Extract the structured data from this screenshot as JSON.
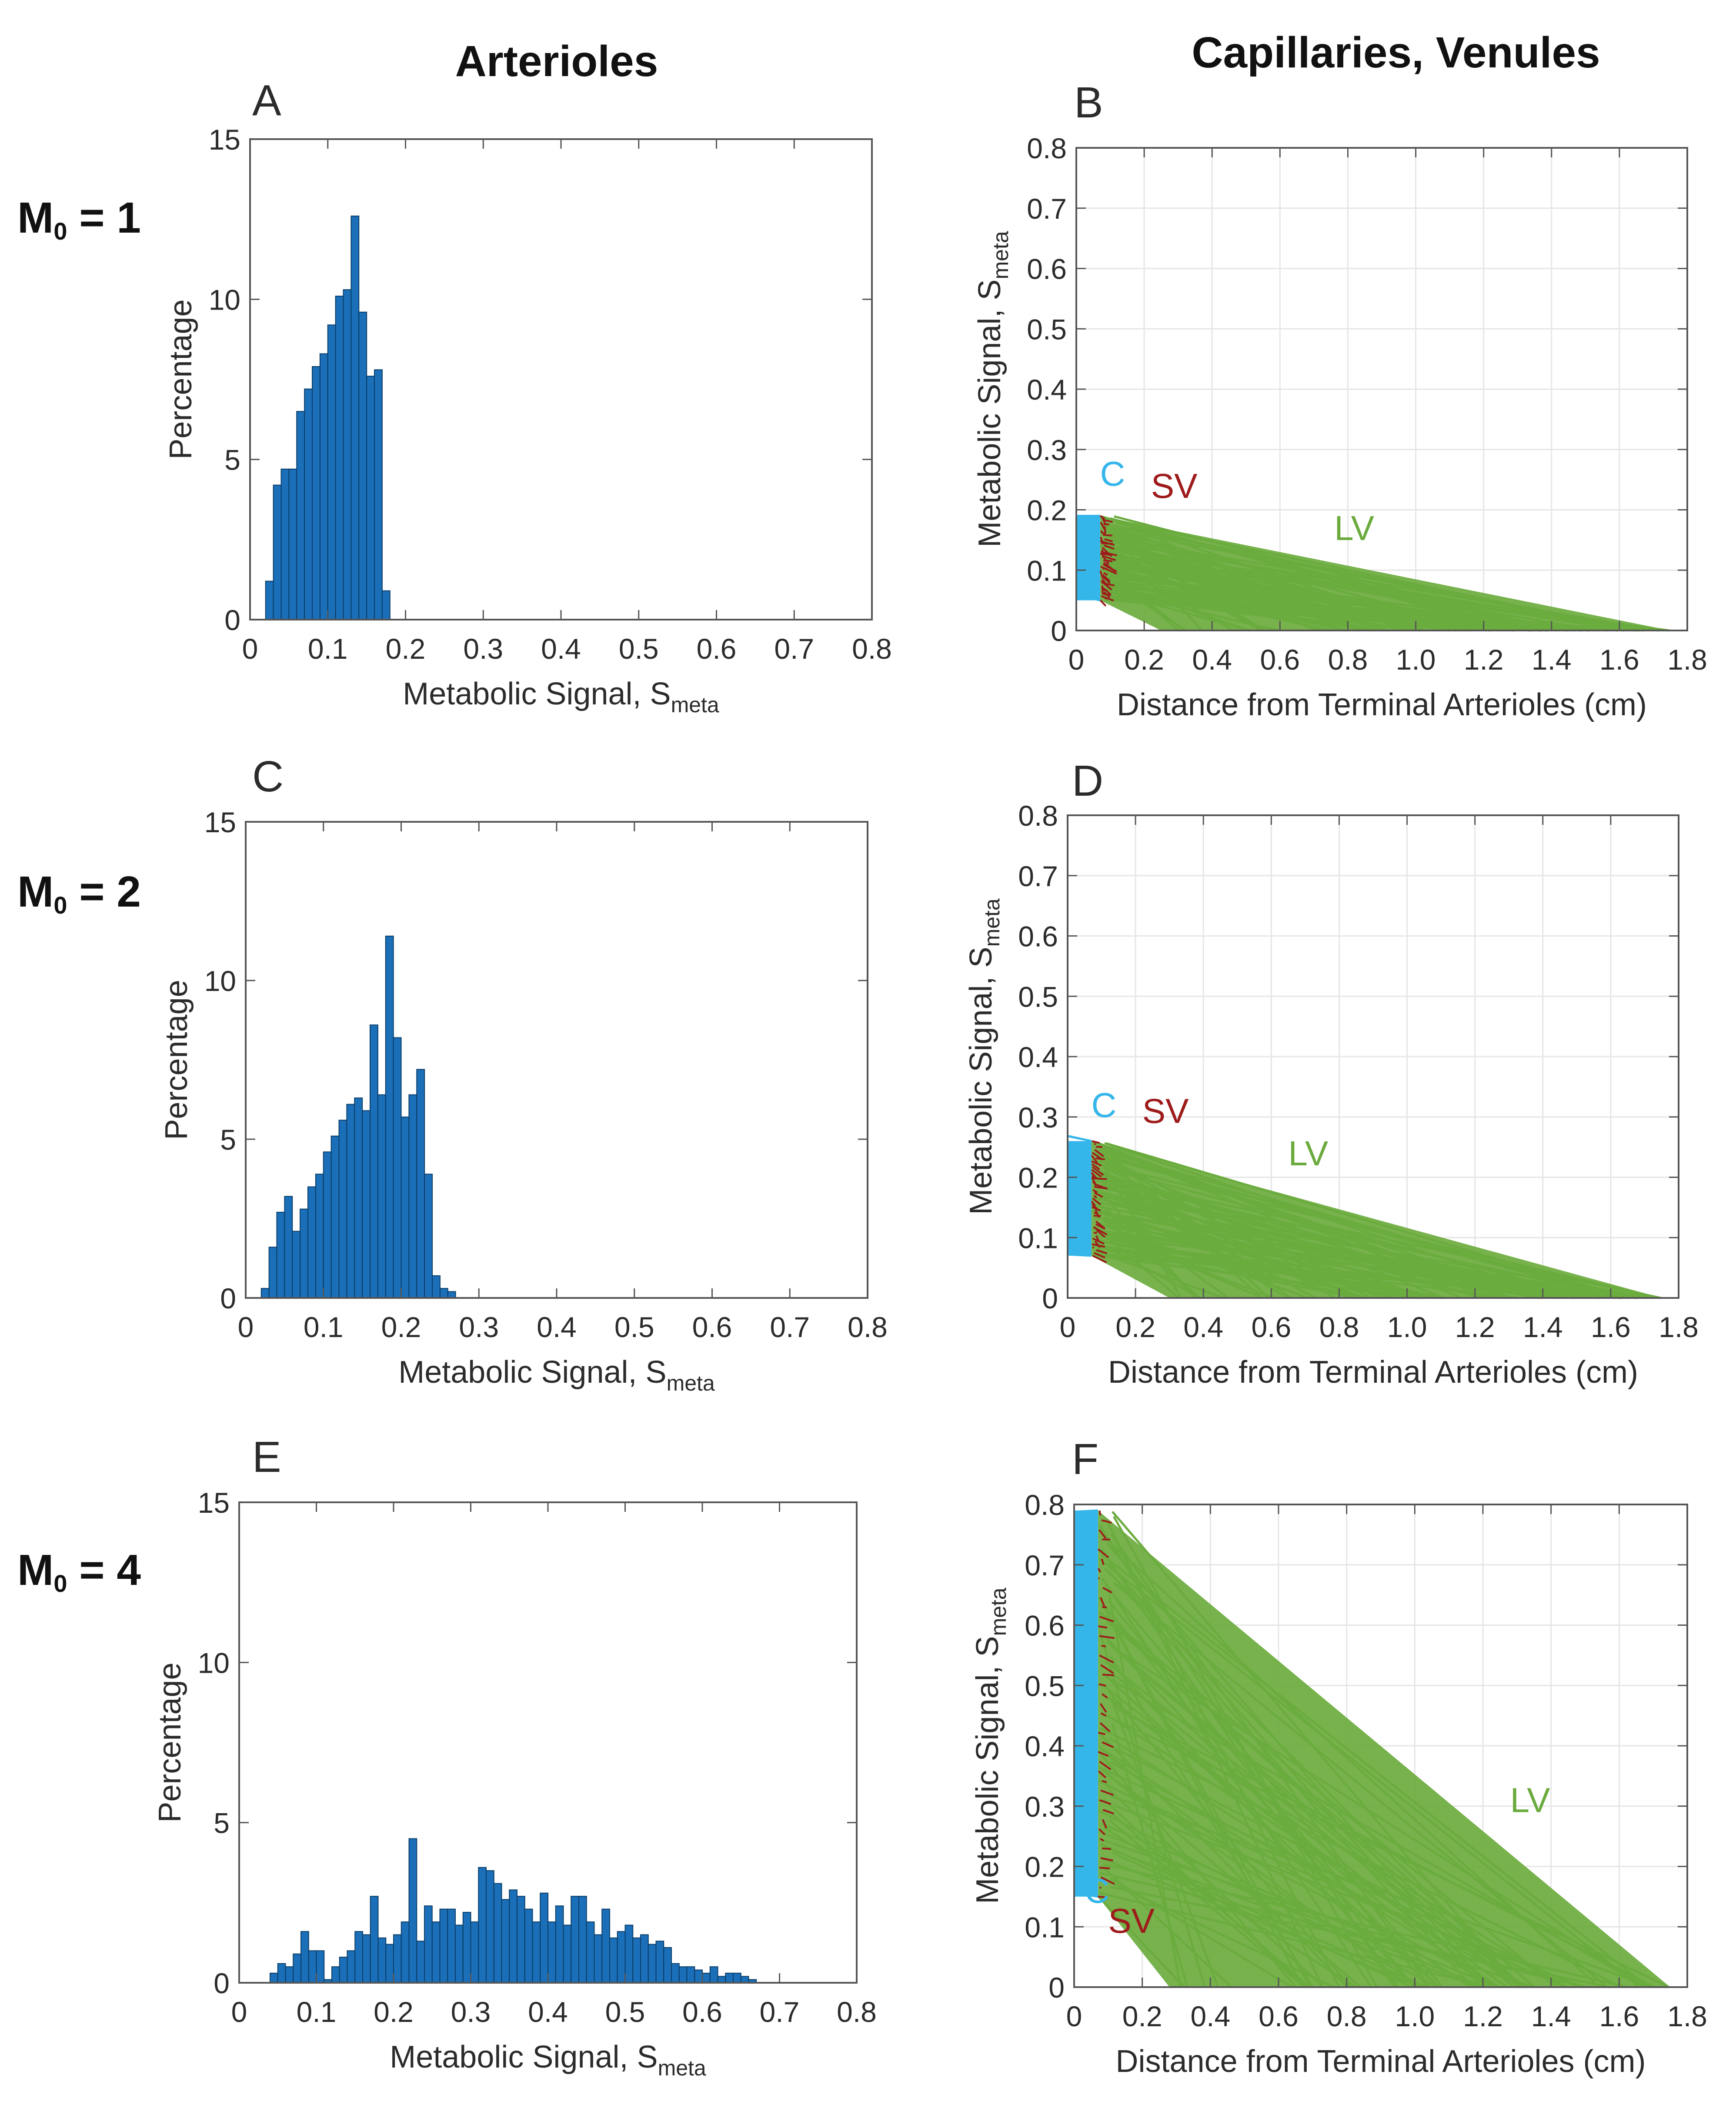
{
  "headings": {
    "left": "Arterioles",
    "right": "Capillaries, Venules"
  },
  "rows": [
    {
      "label_main": "M",
      "label_sub": "0",
      "label_rest": " = 1"
    },
    {
      "label_main": "M",
      "label_sub": "0",
      "label_rest": " = 2"
    },
    {
      "label_main": "M",
      "label_sub": "0",
      "label_rest": " = 4"
    }
  ],
  "colors": {
    "histogram": "#1a6fb8",
    "capillary": "#35b6ea",
    "small_venule": "#9e1b1b",
    "large_venule": "#6bab3e",
    "grid": "#e6e6e6",
    "axis": "#555555"
  },
  "chart_data": [
    {
      "panel": "A",
      "type": "bar",
      "title": "",
      "xlabel": "Metabolic Signal, ",
      "xlabel_sub": "meta",
      "ylabel": "Percentage",
      "xlim": [
        0,
        0.8
      ],
      "ylim": [
        0,
        15
      ],
      "xticks": [
        "0",
        "0.1",
        "0.2",
        "0.3",
        "0.4",
        "0.5",
        "0.6",
        "0.7",
        "0.8"
      ],
      "yticks": [
        "0",
        "5",
        "10",
        "15"
      ],
      "bin_start": 0.02,
      "bin_width": 0.01,
      "values": [
        1.2,
        4.2,
        4.7,
        4.7,
        6.5,
        7.2,
        7.9,
        8.3,
        9.2,
        10.1,
        10.3,
        12.6,
        9.6,
        7.6,
        7.8,
        0.9
      ]
    },
    {
      "panel": "B",
      "type": "line",
      "title": "",
      "xlabel": "Distance from Terminal Arterioles (cm)",
      "ylabel": "Metabolic Signal, ",
      "ylabel_sub": "meta",
      "xlim": [
        0,
        1.8
      ],
      "ylim": [
        0,
        0.8
      ],
      "xticks": [
        "0",
        "0.2",
        "0.4",
        "0.6",
        "0.8",
        "1.0",
        "1.2",
        "1.4",
        "1.6",
        "1.8"
      ],
      "yticks": [
        "0",
        "0.1",
        "0.2",
        "0.3",
        "0.4",
        "0.5",
        "0.6",
        "0.7",
        "0.8"
      ],
      "series": [
        {
          "name": "C",
          "x_range": [
            0,
            0.07
          ],
          "y_range": [
            0.05,
            0.19
          ]
        },
        {
          "name": "SV",
          "x_range": [
            0.07,
            0.12
          ],
          "y_range": [
            0.05,
            0.19
          ]
        },
        {
          "name": "LV",
          "x_end_range": [
            0.25,
            1.75
          ],
          "y_range": [
            0.05,
            0.19
          ]
        }
      ],
      "annotations": [
        {
          "text": "C",
          "x": 0.07,
          "y": 0.24
        },
        {
          "text": "SV",
          "x": 0.22,
          "y": 0.22
        },
        {
          "text": "LV",
          "x": 0.76,
          "y": 0.15
        }
      ]
    },
    {
      "panel": "C",
      "type": "bar",
      "title": "",
      "xlabel": "Metabolic Signal, ",
      "xlabel_sub": "meta",
      "ylabel": "Percentage",
      "xlim": [
        0,
        0.8
      ],
      "ylim": [
        0,
        15
      ],
      "xticks": [
        "0",
        "0.1",
        "0.2",
        "0.3",
        "0.4",
        "0.5",
        "0.6",
        "0.7",
        "0.8"
      ],
      "yticks": [
        "0",
        "5",
        "10",
        "15"
      ],
      "bin_start": 0.02,
      "bin_width": 0.01,
      "values": [
        0.3,
        1.6,
        2.7,
        3.2,
        2.1,
        2.8,
        3.5,
        3.9,
        4.6,
        5.1,
        5.6,
        6.1,
        6.3,
        5.9,
        8.6,
        6.4,
        11.4,
        8.2,
        5.7,
        6.4,
        7.2,
        3.9,
        0.7,
        0.3,
        0.2
      ]
    },
    {
      "panel": "D",
      "type": "line",
      "title": "",
      "xlabel": "Distance from Terminal Arterioles (cm)",
      "ylabel": "Metabolic Signal, ",
      "ylabel_sub": "meta",
      "xlim": [
        0,
        1.8
      ],
      "ylim": [
        0,
        0.8
      ],
      "xticks": [
        "0",
        "0.2",
        "0.4",
        "0.6",
        "0.8",
        "1.0",
        "1.2",
        "1.4",
        "1.6",
        "1.8"
      ],
      "yticks": [
        "0",
        "0.1",
        "0.2",
        "0.3",
        "0.4",
        "0.5",
        "0.6",
        "0.7",
        "0.8"
      ],
      "series": [
        {
          "name": "C",
          "x_range": [
            0,
            0.07
          ],
          "y_range": [
            0.07,
            0.26
          ]
        },
        {
          "name": "SV",
          "x_range": [
            0.07,
            0.12
          ],
          "y_range": [
            0.07,
            0.26
          ]
        },
        {
          "name": "LV",
          "x_end_range": [
            0.3,
            1.75
          ],
          "y_range": [
            0.07,
            0.26
          ]
        }
      ],
      "annotations": [
        {
          "text": "C",
          "x": 0.07,
          "y": 0.3
        },
        {
          "text": "SV",
          "x": 0.22,
          "y": 0.29
        },
        {
          "text": "LV",
          "x": 0.65,
          "y": 0.22
        }
      ]
    },
    {
      "panel": "E",
      "type": "bar",
      "title": "",
      "xlabel": "Metabolic Signal, ",
      "xlabel_sub": "meta",
      "ylabel": "Percentage",
      "xlim": [
        0,
        0.8
      ],
      "ylim": [
        0,
        15
      ],
      "xticks": [
        "0",
        "0.1",
        "0.2",
        "0.3",
        "0.4",
        "0.5",
        "0.6",
        "0.7",
        "0.8"
      ],
      "yticks": [
        "0",
        "5",
        "10",
        "15"
      ],
      "bin_start": 0.04,
      "bin_width": 0.01,
      "values": [
        0.3,
        0.6,
        0.5,
        0.9,
        1.6,
        1.0,
        1.0,
        0.1,
        0.5,
        0.8,
        1.0,
        1.6,
        1.5,
        2.7,
        1.4,
        1.2,
        1.5,
        1.9,
        4.5,
        1.3,
        2.4,
        1.9,
        2.3,
        2.3,
        1.8,
        2.2,
        1.9,
        3.6,
        3.5,
        3.1,
        2.6,
        2.9,
        2.7,
        2.3,
        1.9,
        2.8,
        1.9,
        2.4,
        1.8,
        2.7,
        2.7,
        1.9,
        1.5,
        2.3,
        1.4,
        1.6,
        1.8,
        1.4,
        1.5,
        1.2,
        1.3,
        1.1,
        0.6,
        0.5,
        0.5,
        0.4,
        0.3,
        0.5,
        0.2,
        0.3,
        0.3,
        0.2,
        0.1
      ]
    },
    {
      "panel": "F",
      "type": "line",
      "title": "",
      "xlabel": "Distance from Terminal Arterioles (cm)",
      "ylabel": "Metabolic Signal, ",
      "ylabel_sub": "meta",
      "xlim": [
        0,
        1.8
      ],
      "ylim": [
        0,
        0.8
      ],
      "xticks": [
        "0",
        "0.2",
        "0.4",
        "0.6",
        "0.8",
        "1.0",
        "1.2",
        "1.4",
        "1.6",
        "1.8"
      ],
      "yticks": [
        "0",
        "0.1",
        "0.2",
        "0.3",
        "0.4",
        "0.5",
        "0.6",
        "0.7",
        "0.8"
      ],
      "series": [
        {
          "name": "C",
          "x_range": [
            0,
            0.07
          ],
          "y_range": [
            0.15,
            0.79
          ]
        },
        {
          "name": "SV",
          "x_range": [
            0.07,
            0.12
          ],
          "y_range": [
            0.15,
            0.79
          ]
        },
        {
          "name": "LV",
          "x_end_range": [
            0.28,
            1.75
          ],
          "y_range": [
            0.15,
            0.79
          ]
        }
      ],
      "annotations": [
        {
          "text": "C",
          "x": 0.03,
          "y": 0.14
        },
        {
          "text": "SV",
          "x": 0.1,
          "y": 0.09
        },
        {
          "text": "LV",
          "x": 1.28,
          "y": 0.29
        }
      ]
    }
  ]
}
